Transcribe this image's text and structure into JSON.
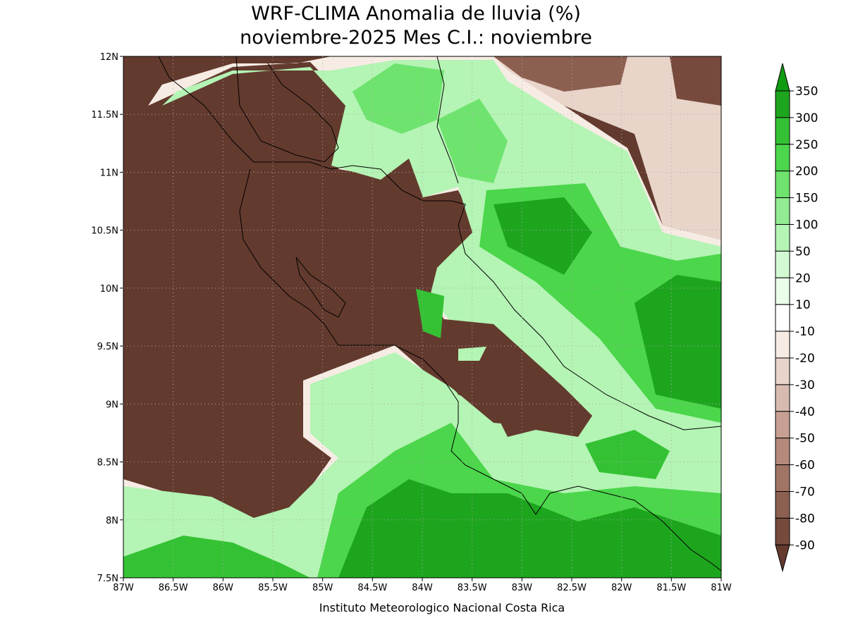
{
  "title": "WRF-CLIMA Anomalia de lluvia (%)",
  "subtitle": "noviembre-2025 Mes C.I.: noviembre",
  "map": {
    "lon_labels": [
      "87W",
      "86.5W",
      "86W",
      "85.5W",
      "85W",
      "84.5W",
      "84W",
      "83.5W",
      "83W",
      "82.5W",
      "82W",
      "81.5W",
      "81W"
    ],
    "lat_labels": [
      "12N",
      "11.5N",
      "11N",
      "10.5N",
      "10N",
      "9.5N",
      "9N",
      "8.5N",
      "8N",
      "7.5N"
    ]
  },
  "colorbar": {
    "levels": [
      350,
      300,
      250,
      200,
      150,
      100,
      50,
      20,
      10,
      -10,
      -20,
      -30,
      -40,
      -50,
      -60,
      -70,
      -80,
      -90
    ],
    "colors": [
      "#119b11",
      "#1ea51e",
      "#34c234",
      "#4bd64b",
      "#6ee36e",
      "#93ec93",
      "#b4f4b4",
      "#d2fad2",
      "#eaffea",
      "#ffffff",
      "#f6ece4",
      "#e9d4ca",
      "#d8bbb0",
      "#c7a093",
      "#b58a7c",
      "#a17466",
      "#8c5f51",
      "#774a3d",
      "#633a2e"
    ]
  },
  "credit": "Instituto Meteorologico Nacional Costa Rica"
}
